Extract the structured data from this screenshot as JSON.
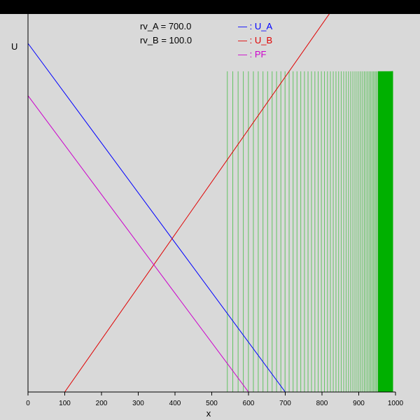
{
  "chart_data": {
    "type": "line",
    "xlabel": "x",
    "ylabel": "U",
    "xlim": [
      0,
      1000
    ],
    "x_ticks": [
      "0",
      "100",
      "200",
      "300",
      "400",
      "500",
      "600",
      "700",
      "800",
      "900",
      "1000"
    ],
    "params": [
      {
        "text": "rv_A = 700.0"
      },
      {
        "text": "rv_B = 100.0"
      }
    ],
    "legend": [
      {
        "text": "— : U_A",
        "color": "#0000ff"
      },
      {
        "text": "— : U_B",
        "color": "#e00000"
      },
      {
        "text": "— : PF",
        "color": "#cc00cc"
      }
    ],
    "series": [
      {
        "color": "#0000ff",
        "points": [
          [
            0,
            1.0
          ],
          [
            700,
            0
          ],
          [
            1000,
            0
          ]
        ]
      },
      {
        "color": "#e00000",
        "points": [
          [
            0,
            0
          ],
          [
            100,
            0
          ],
          [
            850,
            1.13
          ]
        ]
      },
      {
        "color": "#cc00cc",
        "points": [
          [
            0,
            1.13
          ],
          [
            0,
            0.85
          ],
          [
            600,
            0
          ],
          [
            1000,
            0
          ]
        ]
      }
    ],
    "green_lines": {
      "color": "#00b000",
      "start": 550,
      "end": 1000,
      "count": 90,
      "top": 0.92
    }
  }
}
